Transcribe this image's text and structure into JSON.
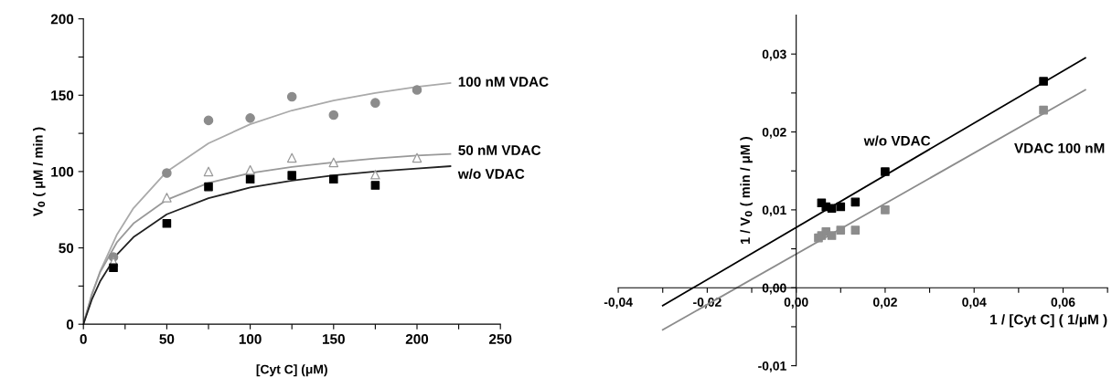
{
  "chart_data": [
    {
      "type": "scatter",
      "xlabel": "[Cyt C] (μM)",
      "ylabel": "V$_{0}$ ( μM / min )",
      "xlim": [
        0,
        250
      ],
      "ylim": [
        0,
        200
      ],
      "xticks": [
        0,
        {
          "value": 25,
          "label": null
        },
        50,
        {
          "value": 75,
          "label": null
        },
        100,
        {
          "value": 125,
          "label": null
        },
        150,
        {
          "value": 175,
          "label": null
        },
        200,
        {
          "value": 225,
          "label": null
        },
        250
      ],
      "yticks": [
        0,
        {
          "value": 25,
          "label": null
        },
        50,
        {
          "value": 75,
          "label": null
        },
        100,
        {
          "value": 125,
          "label": null
        },
        150,
        {
          "value": 175,
          "label": null
        },
        200
      ],
      "grid": false,
      "legend": false,
      "series": [
        {
          "marker": "circle",
          "color": "#8c8c8c",
          "x": [
            18,
            50,
            75,
            100,
            125,
            150,
            175,
            200
          ],
          "values": [
            44,
            99,
            133.5,
            135,
            149,
            137,
            145,
            153.5
          ]
        },
        {
          "marker": "triangle",
          "color": "#999999",
          "x": [
            18,
            50,
            75,
            100,
            125,
            150,
            175,
            200
          ],
          "values": [
            41,
            83,
            100,
            101,
            109,
            106,
            98,
            109
          ]
        },
        {
          "marker": "square",
          "color": "#000000",
          "x": [
            18,
            50,
            75,
            100,
            125,
            150,
            175
          ],
          "values": [
            37,
            66,
            90,
            95,
            97.5,
            95,
            91
          ]
        },
        {
          "type": "line",
          "name": "100 nM VDAC",
          "color": "#aaaaaa",
          "x": [
            0,
            5,
            10,
            20,
            30,
            50,
            75,
            100,
            125,
            150,
            175,
            200,
            220
          ],
          "values": [
            0,
            19,
            34.5,
            58.5,
            76,
            100,
            118.5,
            131,
            140,
            146.5,
            151.5,
            155.5,
            158
          ]
        },
        {
          "type": "line",
          "name": "50 nM VDAC",
          "color": "#999999",
          "x": [
            0,
            5,
            10,
            20,
            30,
            50,
            75,
            100,
            125,
            150,
            175,
            200,
            220
          ],
          "values": [
            0,
            19.5,
            34,
            53.5,
            66,
            81.5,
            92.5,
            99,
            103,
            106,
            108.5,
            110.5,
            111.5
          ]
        },
        {
          "type": "line",
          "name": "w/o VDAC",
          "color": "#222222",
          "x": [
            0,
            5,
            10,
            20,
            30,
            50,
            75,
            100,
            125,
            150,
            175,
            200,
            220
          ],
          "values": [
            0,
            16,
            28,
            45.5,
            57,
            72,
            82.5,
            89.5,
            94,
            97.5,
            100,
            102,
            103.5
          ]
        }
      ]
    },
    {
      "type": "scatter",
      "xlabel": "1 / [Cyt C] ( 1/μM )",
      "ylabel": "1 / V$_{0}$ ( min / μM )",
      "xlim": [
        -0.04,
        0.07
      ],
      "ylim": [
        -0.01,
        0.035
      ],
      "xticks": [
        {
          "value": -0.04,
          "label": "-0,04"
        },
        {
          "value": -0.03,
          "label": null
        },
        {
          "value": -0.02,
          "label": "-0,02"
        },
        {
          "value": -0.01,
          "label": null
        },
        {
          "value": 0,
          "label": "0,00"
        },
        {
          "value": 0.01,
          "label": null
        },
        {
          "value": 0.02,
          "label": "0,02"
        },
        {
          "value": 0.03,
          "label": null
        },
        {
          "value": 0.04,
          "label": "0,04"
        },
        {
          "value": 0.05,
          "label": null
        },
        {
          "value": 0.06,
          "label": "0,06"
        },
        {
          "value": 0.07,
          "label": null
        }
      ],
      "yticks": [
        {
          "value": -0.01,
          "label": "-0,01"
        },
        {
          "value": -0.005,
          "label": null
        },
        {
          "value": 0,
          "label": "0,00"
        },
        {
          "value": 0.005,
          "label": null
        },
        {
          "value": 0.01,
          "label": "0,01"
        },
        {
          "value": 0.015,
          "label": null
        },
        {
          "value": 0.02,
          "label": "0,02"
        },
        {
          "value": 0.025,
          "label": null
        },
        {
          "value": 0.03,
          "label": "0,03"
        }
      ],
      "grid": false,
      "legend": false,
      "series": [
        {
          "marker": "square",
          "color": "#000000",
          "x": [
            0.0057,
            0.0067,
            0.008,
            0.01,
            0.0133,
            0.02,
            0.0556
          ],
          "values": [
            0.0109,
            0.0104,
            0.0102,
            0.0104,
            0.011,
            0.0149,
            0.0265
          ]
        },
        {
          "marker": "square",
          "color": "#8c8c8c",
          "x": [
            0.005,
            0.0057,
            0.0067,
            0.008,
            0.01,
            0.0133,
            0.02,
            0.0556
          ],
          "values": [
            0.0064,
            0.0067,
            0.0072,
            0.0067,
            0.0074,
            0.0074,
            0.01,
            0.0228
          ]
        },
        {
          "type": "line",
          "name": "w/o VDAC",
          "color": "#000000",
          "x": [
            -0.03,
            0.065
          ],
          "values": [
            -0.0023,
            0.0295
          ]
        },
        {
          "type": "line",
          "name": "VDAC 100 nM",
          "color": "#8c8c8c",
          "x": [
            -0.03,
            0.065
          ],
          "values": [
            -0.0054,
            0.0254
          ]
        }
      ]
    }
  ]
}
